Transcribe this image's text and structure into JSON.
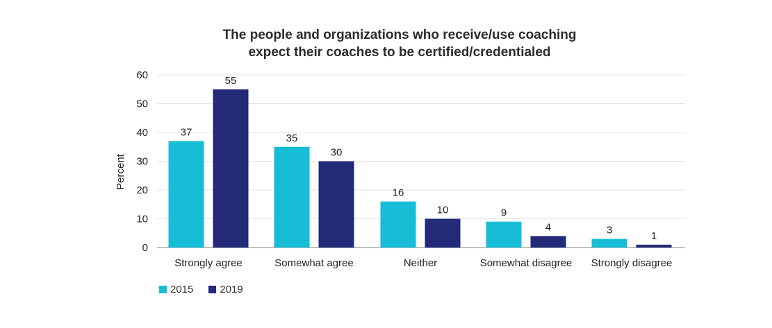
{
  "chart_data": {
    "type": "bar",
    "title_lines": [
      "The people and organizations who receive/use coaching",
      "expect their coaches to be certified/credentialed"
    ],
    "ylabel": "Percent",
    "xlabel": "",
    "ylim": [
      0,
      60
    ],
    "yticks": [
      0,
      10,
      20,
      30,
      40,
      50,
      60
    ],
    "grid": true,
    "legend_position": "bottom-left",
    "categories": [
      "Strongly agree",
      "Somewhat agree",
      "Neither",
      "Somewhat disagree",
      "Strongly disagree"
    ],
    "series": [
      {
        "name": "2015",
        "color": "#17BCD6",
        "values": [
          37,
          35,
          16,
          9,
          3
        ]
      },
      {
        "name": "2019",
        "color": "#232A78",
        "values": [
          55,
          30,
          10,
          4,
          1
        ]
      }
    ]
  }
}
